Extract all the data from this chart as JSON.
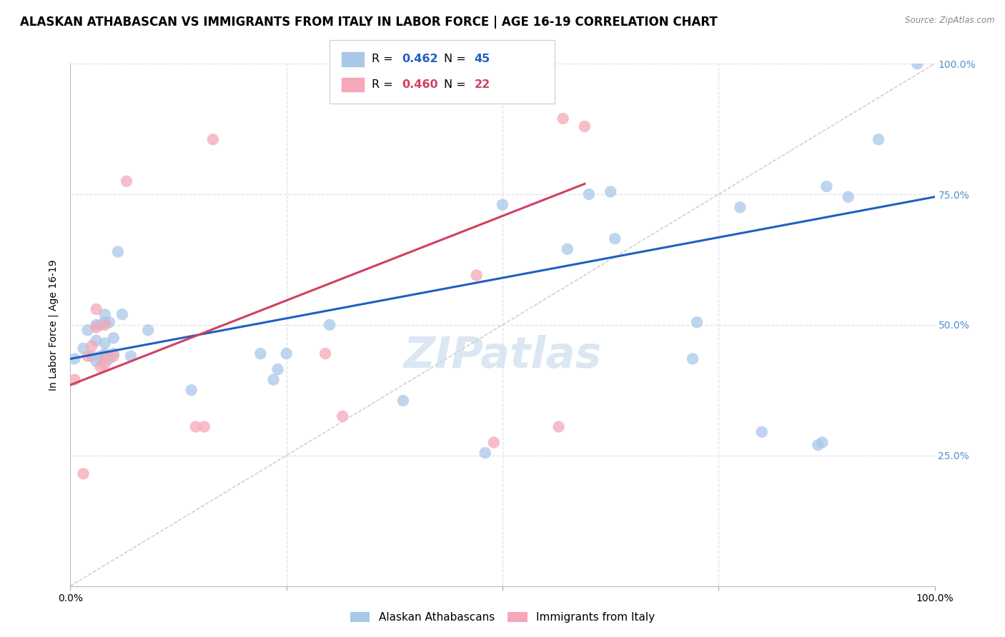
{
  "title": "ALASKAN ATHABASCAN VS IMMIGRANTS FROM ITALY IN LABOR FORCE | AGE 16-19 CORRELATION CHART",
  "source": "Source: ZipAtlas.com",
  "ylabel": "In Labor Force | Age 16-19",
  "xlim": [
    0,
    1.0
  ],
  "ylim": [
    0,
    1.0
  ],
  "legend_blue_r": "0.462",
  "legend_blue_n": "45",
  "legend_pink_r": "0.460",
  "legend_pink_n": "22",
  "label_blue": "Alaskan Athabascans",
  "label_pink": "Immigrants from Italy",
  "blue_color": "#a8c8e8",
  "pink_color": "#f4a8b8",
  "blue_line_color": "#2060c0",
  "pink_line_color": "#d04060",
  "diagonal_color": "#c8c8d0",
  "watermark": "ZIPatlas",
  "blue_scatter_x": [
    0.005,
    0.015,
    0.02,
    0.025,
    0.03,
    0.03,
    0.03,
    0.035,
    0.035,
    0.04,
    0.04,
    0.04,
    0.04,
    0.04,
    0.045,
    0.045,
    0.05,
    0.05,
    0.055,
    0.06,
    0.07,
    0.09,
    0.14,
    0.22,
    0.235,
    0.24,
    0.25,
    0.3,
    0.385,
    0.48,
    0.5,
    0.575,
    0.6,
    0.625,
    0.63,
    0.72,
    0.725,
    0.775,
    0.8,
    0.865,
    0.87,
    0.875,
    0.9,
    0.935,
    0.98
  ],
  "blue_scatter_y": [
    0.435,
    0.455,
    0.49,
    0.44,
    0.43,
    0.47,
    0.5,
    0.44,
    0.5,
    0.44,
    0.445,
    0.465,
    0.505,
    0.52,
    0.435,
    0.505,
    0.445,
    0.475,
    0.64,
    0.52,
    0.44,
    0.49,
    0.375,
    0.445,
    0.395,
    0.415,
    0.445,
    0.5,
    0.355,
    0.255,
    0.73,
    0.645,
    0.75,
    0.755,
    0.665,
    0.435,
    0.505,
    0.725,
    0.295,
    0.27,
    0.275,
    0.765,
    0.745,
    0.855,
    1.0
  ],
  "pink_scatter_x": [
    0.005,
    0.015,
    0.02,
    0.025,
    0.03,
    0.03,
    0.035,
    0.04,
    0.04,
    0.04,
    0.05,
    0.065,
    0.145,
    0.155,
    0.165,
    0.295,
    0.315,
    0.47,
    0.49,
    0.565,
    0.57,
    0.595
  ],
  "pink_scatter_y": [
    0.395,
    0.215,
    0.44,
    0.46,
    0.495,
    0.53,
    0.42,
    0.425,
    0.44,
    0.5,
    0.44,
    0.775,
    0.305,
    0.305,
    0.855,
    0.445,
    0.325,
    0.595,
    0.275,
    0.305,
    0.895,
    0.88
  ],
  "blue_line_x0": 0.0,
  "blue_line_x1": 1.0,
  "blue_line_y0": 0.435,
  "blue_line_y1": 0.745,
  "pink_line_x0": 0.0,
  "pink_line_x1": 0.595,
  "pink_line_y0": 0.385,
  "pink_line_y1": 0.77,
  "background_color": "#ffffff",
  "grid_color": "#dde0ea",
  "title_fontsize": 12,
  "axis_label_fontsize": 10,
  "tick_fontsize": 10,
  "right_tick_color": "#5090d0"
}
